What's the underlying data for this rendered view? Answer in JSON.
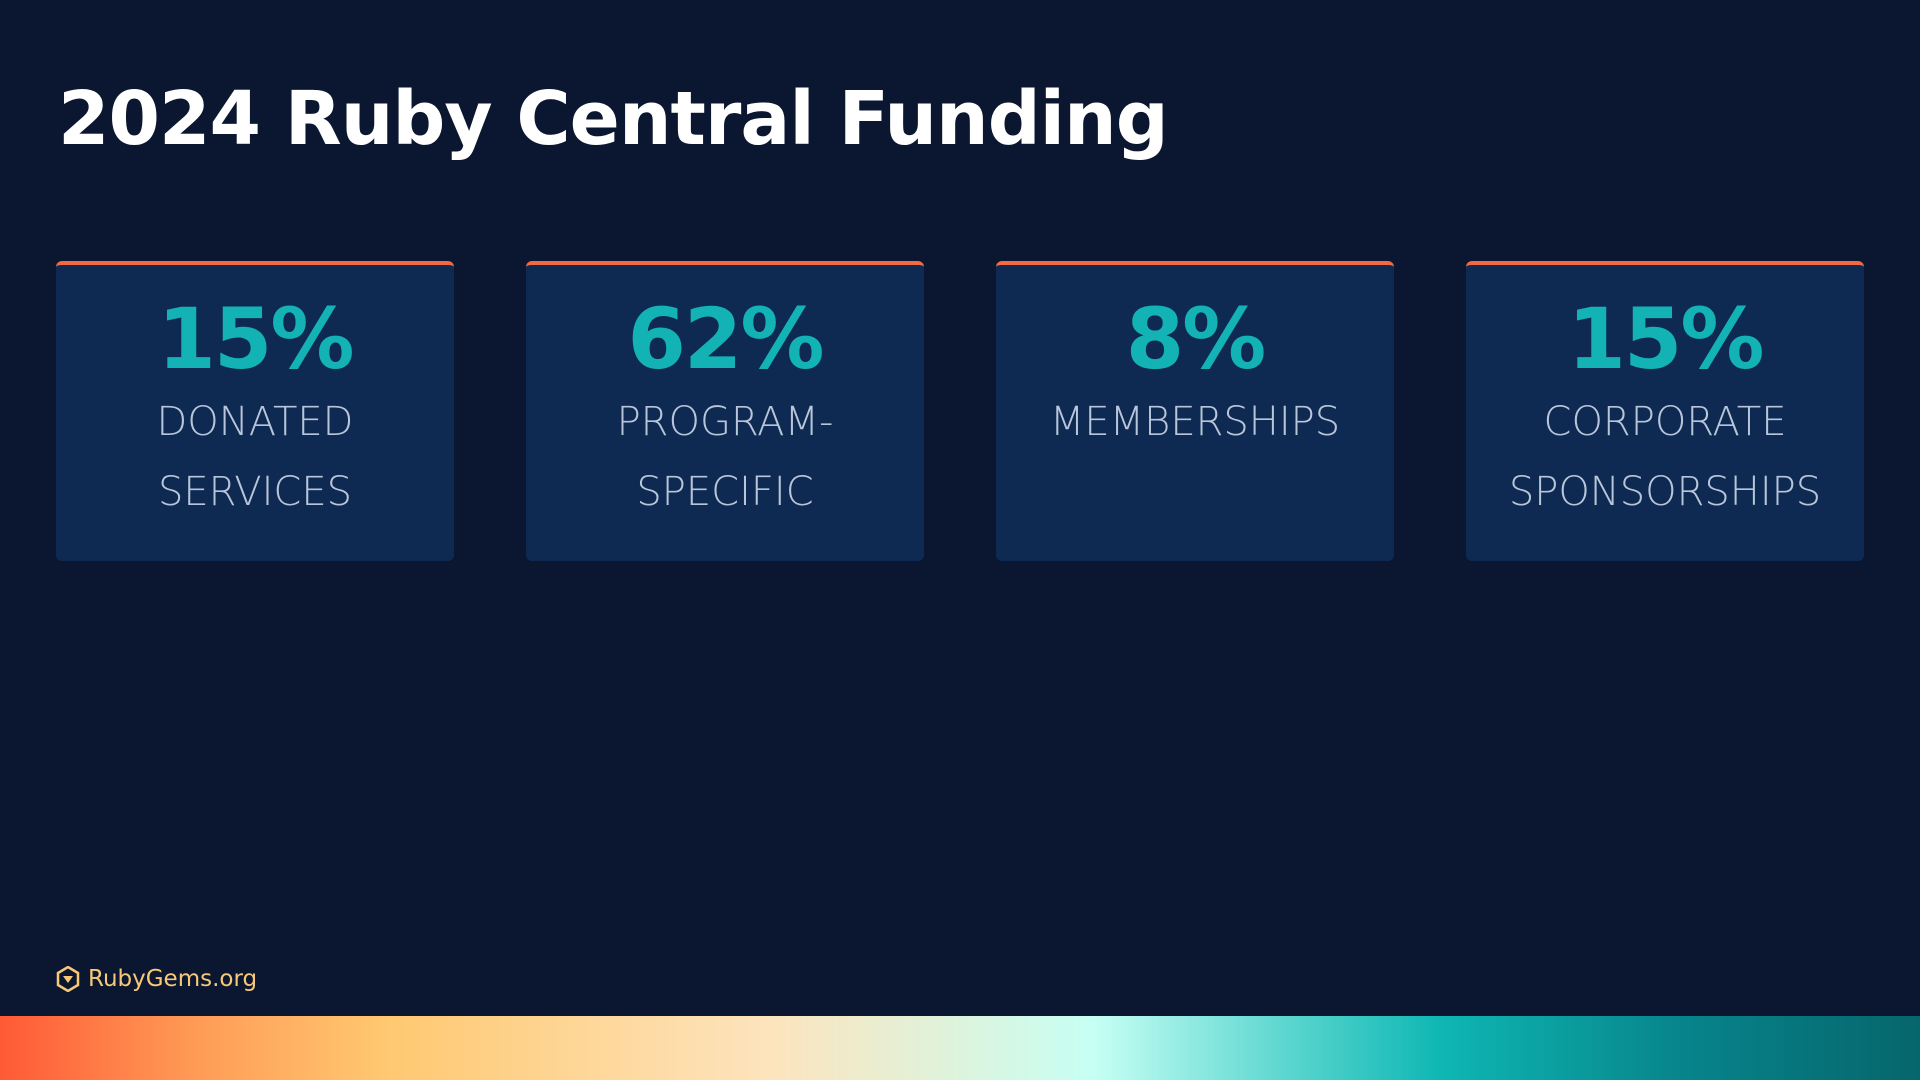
{
  "title": "2024 Ruby Central Funding",
  "cards": [
    {
      "stat": "15%",
      "label_lines": [
        "DONATED",
        "SERVICES"
      ]
    },
    {
      "stat": "62%",
      "label_lines": [
        "PROGRAM-",
        "SPECIFIC"
      ]
    },
    {
      "stat": "8%",
      "label_lines": [
        "MEMBERSHIPS"
      ]
    },
    {
      "stat": "15%",
      "label_lines": [
        "CORPORATE",
        "SPONSORSHIPS"
      ]
    }
  ],
  "footer": {
    "brand": "RubyGems.org"
  }
}
